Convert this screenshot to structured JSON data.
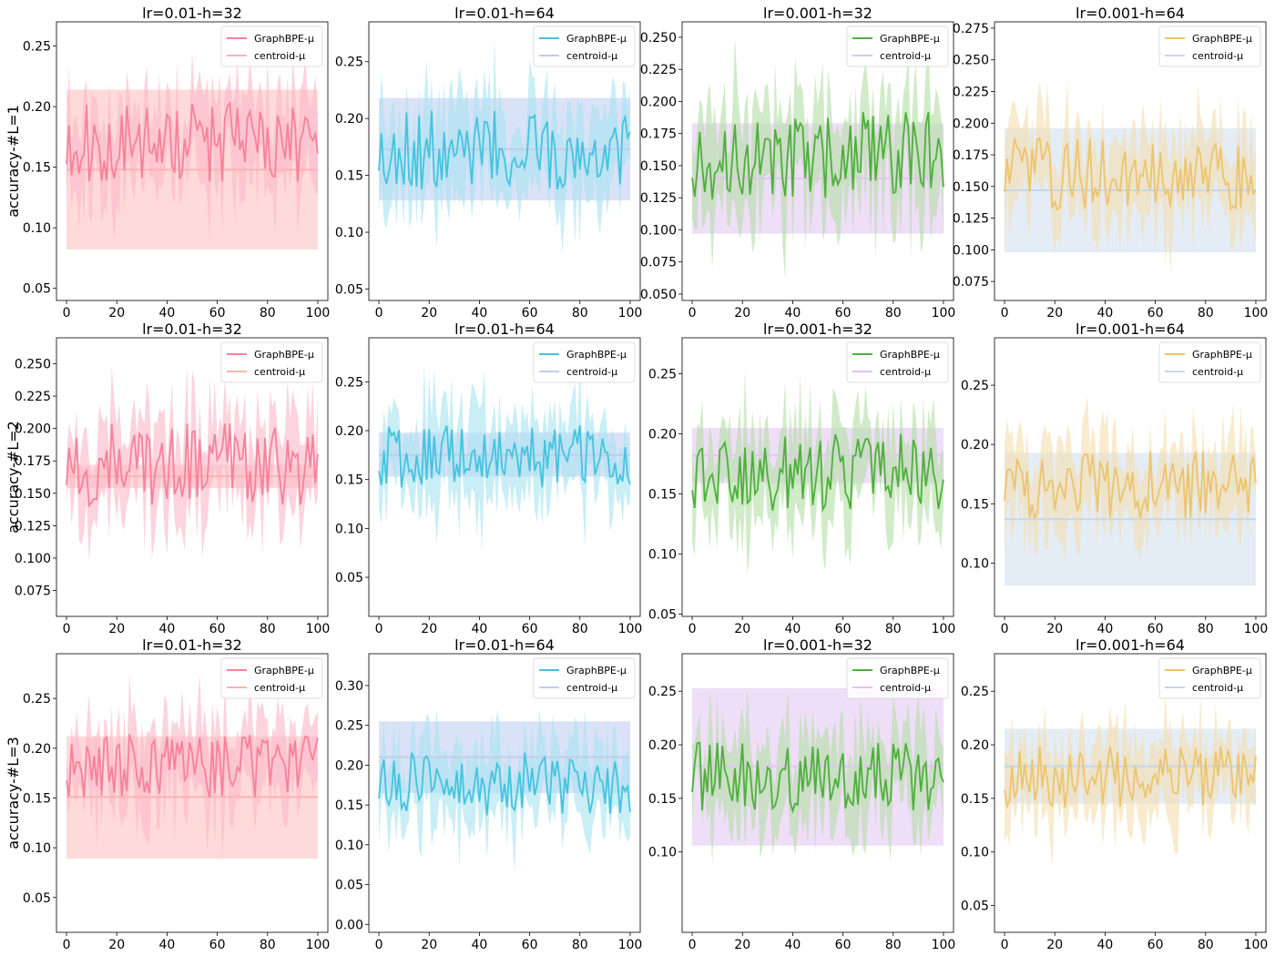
{
  "chart_data": {
    "type": "line",
    "rows": [
      {
        "ylabel": "accuracy-#L=1"
      },
      {
        "ylabel": "accuracy-#L=2"
      },
      {
        "ylabel": "accuracy-#L=3"
      }
    ],
    "x_ticks": [
      0,
      20,
      40,
      60,
      80,
      100
    ],
    "legend_suffix": "-μ",
    "panels": [
      {
        "title": "lr=0.01-h=32",
        "color": "#f5829b",
        "fill": "#fbb8c8",
        "c_line": "#f9b4b4",
        "c_fill": "#ffc6c6",
        "y_mean": 0.17,
        "y_amp": 0.021,
        "y_band": 0.04,
        "c_mean": 0.148,
        "c_lo": 0.082,
        "c_hi": 0.214,
        "ylim": [
          0.04,
          0.27
        ],
        "yticks": [
          0.05,
          0.1,
          0.15,
          0.2,
          0.25
        ],
        "ytick_labels": [
          "0.05",
          "0.10",
          "0.15",
          "0.20",
          "0.25"
        ],
        "series": [
          "GraphBPE",
          "centroid"
        ],
        "seed": 11
      },
      {
        "title": "lr=0.01-h=64",
        "color": "#45c3df",
        "fill": "#a8e4f1",
        "c_line": "#c2cdec",
        "c_fill": "#c5d3f2",
        "y_mean": 0.172,
        "y_amp": 0.022,
        "y_band": 0.045,
        "c_mean": 0.173,
        "c_lo": 0.128,
        "c_hi": 0.218,
        "ylim": [
          0.04,
          0.285
        ],
        "yticks": [
          0.05,
          0.1,
          0.15,
          0.2,
          0.25
        ],
        "ytick_labels": [
          "0.05",
          "0.10",
          "0.15",
          "0.20",
          "0.25"
        ],
        "series": [
          "GraphBPE",
          "centroid"
        ],
        "seed": 23
      },
      {
        "title": "lr=0.001-h=32",
        "color": "#4eaf3c",
        "fill": "#b4dfa8",
        "c_line": "#e0c6f0",
        "c_fill": "#e6ccf5",
        "y_mean": 0.158,
        "y_amp": 0.022,
        "y_band": 0.045,
        "c_mean": 0.14,
        "c_lo": 0.097,
        "c_hi": 0.183,
        "ylim": [
          0.045,
          0.262
        ],
        "yticks": [
          0.05,
          0.075,
          0.1,
          0.125,
          0.15,
          0.175,
          0.2,
          0.225,
          0.25
        ],
        "ytick_labels": [
          "0.050",
          "0.075",
          "0.100",
          "0.125",
          "0.150",
          "0.175",
          "0.200",
          "0.225",
          "0.250"
        ],
        "series": [
          "GraphBPE",
          "centroid"
        ],
        "seed": 37
      },
      {
        "title": "lr=0.001-h=64",
        "color": "#ecc46e",
        "fill": "#f4deb0",
        "c_line": "#c4d7ea",
        "c_fill": "#d6e4f1",
        "y_mean": 0.16,
        "y_amp": 0.018,
        "y_band": 0.038,
        "c_mean": 0.147,
        "c_lo": 0.098,
        "c_hi": 0.196,
        "ylim": [
          0.06,
          0.28
        ],
        "yticks": [
          0.075,
          0.1,
          0.125,
          0.15,
          0.175,
          0.2,
          0.225,
          0.25,
          0.275
        ],
        "ytick_labels": [
          "0.075",
          "0.100",
          "0.125",
          "0.150",
          "0.175",
          "0.200",
          "0.225",
          "0.250",
          "0.275"
        ],
        "series": [
          "GraphBPE",
          "centroid"
        ],
        "seed": 41
      },
      {
        "title": "lr=0.01-h=32",
        "color": "#f5829b",
        "fill": "#fbb8c8",
        "c_line": "#f9b4b4",
        "c_fill": "#ffc6c6",
        "y_mean": 0.172,
        "y_amp": 0.02,
        "y_band": 0.04,
        "c_mean": 0.163,
        "c_lo": 0.154,
        "c_hi": 0.172,
        "ylim": [
          0.055,
          0.27
        ],
        "yticks": [
          0.075,
          0.1,
          0.125,
          0.15,
          0.175,
          0.2,
          0.225,
          0.25
        ],
        "ytick_labels": [
          "0.075",
          "0.100",
          "0.125",
          "0.150",
          "0.175",
          "0.200",
          "0.225",
          "0.250"
        ],
        "series": [
          "GraphBPE",
          "centroid"
        ],
        "seed": 53
      },
      {
        "title": "lr=0.01-h=64",
        "color": "#45c3df",
        "fill": "#a8e4f1",
        "c_line": "#c2cdec",
        "c_fill": "#c5d3f2",
        "y_mean": 0.174,
        "y_amp": 0.02,
        "y_band": 0.05,
        "c_mean": 0.175,
        "c_lo": 0.153,
        "c_hi": 0.198,
        "ylim": [
          0.01,
          0.295
        ],
        "yticks": [
          0.05,
          0.1,
          0.15,
          0.2,
          0.25
        ],
        "ytick_labels": [
          "0.05",
          "0.10",
          "0.15",
          "0.20",
          "0.25"
        ],
        "series": [
          "GraphBPE",
          "centroid"
        ],
        "seed": 67
      },
      {
        "title": "lr=0.001-h=32",
        "color": "#4eaf3c",
        "fill": "#b4dfa8",
        "c_line": "#e0c6f0",
        "c_fill": "#e6ccf5",
        "y_mean": 0.168,
        "y_amp": 0.02,
        "y_band": 0.045,
        "c_mean": 0.182,
        "c_lo": 0.159,
        "c_hi": 0.205,
        "ylim": [
          0.048,
          0.28
        ],
        "yticks": [
          0.05,
          0.1,
          0.15,
          0.2,
          0.25
        ],
        "ytick_labels": [
          "0.05",
          "0.10",
          "0.15",
          "0.20",
          "0.25"
        ],
        "series": [
          "GraphBPE",
          "centroid"
        ],
        "seed": 79
      },
      {
        "title": "lr=0.001-h=64",
        "color": "#ecc46e",
        "fill": "#f4deb0",
        "c_line": "#c4d7ea",
        "c_fill": "#d6e4f1",
        "y_mean": 0.166,
        "y_amp": 0.018,
        "y_band": 0.04,
        "c_mean": 0.137,
        "c_lo": 0.081,
        "c_hi": 0.193,
        "ylim": [
          0.055,
          0.29
        ],
        "yticks": [
          0.1,
          0.15,
          0.2,
          0.25
        ],
        "ytick_labels": [
          "0.10",
          "0.15",
          "0.20",
          "0.25"
        ],
        "series": [
          "GraphBPE",
          "centroid"
        ],
        "seed": 83
      },
      {
        "title": "lr=0.01-h=32",
        "color": "#f5829b",
        "fill": "#fbb8c8",
        "c_line": "#f9b4b4",
        "c_fill": "#ffc6c6",
        "y_mean": 0.182,
        "y_amp": 0.02,
        "y_band": 0.045,
        "c_mean": 0.151,
        "c_lo": 0.089,
        "c_hi": 0.212,
        "ylim": [
          0.015,
          0.295
        ],
        "yticks": [
          0.05,
          0.1,
          0.15,
          0.2,
          0.25
        ],
        "ytick_labels": [
          "0.05",
          "0.10",
          "0.15",
          "0.20",
          "0.25"
        ],
        "series": [
          "GraphBPE",
          "centroid"
        ],
        "seed": 97
      },
      {
        "title": "lr=0.01-h=64",
        "color": "#45c3df",
        "fill": "#a8e4f1",
        "c_line": "#c2cdec",
        "c_fill": "#c5d3f2",
        "y_mean": 0.176,
        "y_amp": 0.025,
        "y_band": 0.055,
        "c_mean": 0.21,
        "c_lo": 0.165,
        "c_hi": 0.255,
        "ylim": [
          -0.01,
          0.34
        ],
        "yticks": [
          0.0,
          0.05,
          0.1,
          0.15,
          0.2,
          0.25,
          0.3
        ],
        "ytick_labels": [
          "0.00",
          "0.05",
          "0.10",
          "0.15",
          "0.20",
          "0.25",
          "0.30"
        ],
        "series": [
          "GraphBPE",
          "centroid"
        ],
        "seed": 101
      },
      {
        "title": "lr=0.001-h=32",
        "color": "#4eaf3c",
        "fill": "#b4dfa8",
        "c_line": "#e0c6f0",
        "c_fill": "#e6ccf5",
        "y_mean": 0.17,
        "y_amp": 0.02,
        "y_band": 0.045,
        "c_mean": 0.18,
        "c_lo": 0.106,
        "c_hi": 0.253,
        "ylim": [
          0.025,
          0.285
        ],
        "yticks": [
          0.1,
          0.15,
          0.2,
          0.25
        ],
        "ytick_labels": [
          "0.10",
          "0.15",
          "0.20",
          "0.25"
        ],
        "series": [
          "GraphBPE",
          "centroid"
        ],
        "seed": 113
      },
      {
        "title": "lr=0.001-h=64",
        "color": "#ecc46e",
        "fill": "#f4deb0",
        "c_line": "#c4d7ea",
        "c_fill": "#d6e4f1",
        "y_mean": 0.17,
        "y_amp": 0.018,
        "y_band": 0.04,
        "c_mean": 0.18,
        "c_lo": 0.145,
        "c_hi": 0.215,
        "ylim": [
          0.025,
          0.285
        ],
        "yticks": [
          0.05,
          0.1,
          0.15,
          0.2,
          0.25
        ],
        "ytick_labels": [
          "0.05",
          "0.10",
          "0.15",
          "0.20",
          "0.25"
        ],
        "series": [
          "GraphBPE",
          "centroid"
        ],
        "seed": 127
      }
    ]
  }
}
